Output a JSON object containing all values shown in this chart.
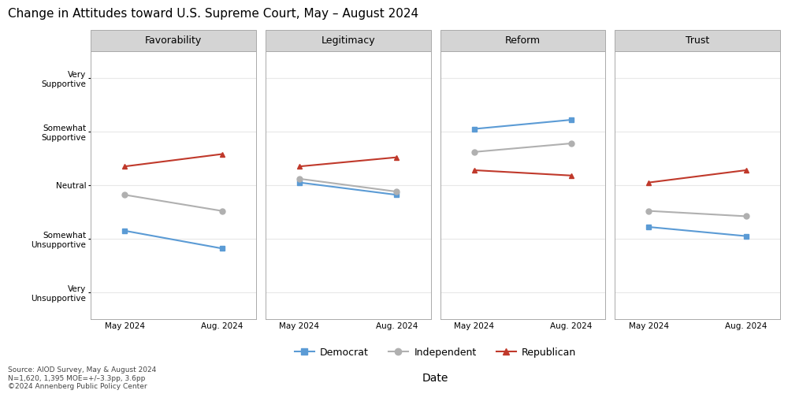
{
  "title": "Change in Attitudes toward U.S. Supreme Court, May – August 2024",
  "panels": [
    "Favorability",
    "Legitimacy",
    "Reform",
    "Trust"
  ],
  "x_labels": [
    "May 2024",
    "Aug. 2024"
  ],
  "x_values": [
    0,
    1
  ],
  "xlabel": "Date",
  "ytick_labels": [
    "Very\nUnsupportive",
    "Somewhat\nUnsupportive",
    "Neutral",
    "Somewhat\nSupportive",
    "Very\nSupportive"
  ],
  "ytick_positions": [
    1,
    2,
    3,
    4,
    5
  ],
  "ylim": [
    0.5,
    5.5
  ],
  "groups": [
    "Democrat",
    "Independent",
    "Republican"
  ],
  "colors": {
    "Democrat": "#5b9bd5",
    "Independent": "#b0b0b0",
    "Republican": "#c0392b"
  },
  "markers": {
    "Democrat": "s",
    "Independent": "o",
    "Republican": "^"
  },
  "data": {
    "Favorability": {
      "Democrat": [
        2.15,
        1.82
      ],
      "Independent": [
        2.82,
        2.52
      ],
      "Republican": [
        3.35,
        3.58
      ]
    },
    "Legitimacy": {
      "Democrat": [
        3.05,
        2.82
      ],
      "Independent": [
        3.12,
        2.88
      ],
      "Republican": [
        3.35,
        3.52
      ]
    },
    "Reform": {
      "Democrat": [
        4.05,
        4.22
      ],
      "Independent": [
        3.62,
        3.78
      ],
      "Republican": [
        3.28,
        3.18
      ]
    },
    "Trust": {
      "Democrat": [
        2.22,
        2.05
      ],
      "Independent": [
        2.52,
        2.42
      ],
      "Republican": [
        3.05,
        3.28
      ]
    }
  },
  "source_text": "Source: AIOD Survey, May & August 2024\nN=1,620, 1,395 MOE=+/–3.3pp, 3.6pp\n©2024 Annenberg Public Policy Center",
  "plot_bg_color": "#ffffff",
  "panel_header_color": "#d4d4d4",
  "grid_color": "#e8e8e8",
  "fig_bg_color": "#ffffff",
  "border_color": "#aaaaaa"
}
